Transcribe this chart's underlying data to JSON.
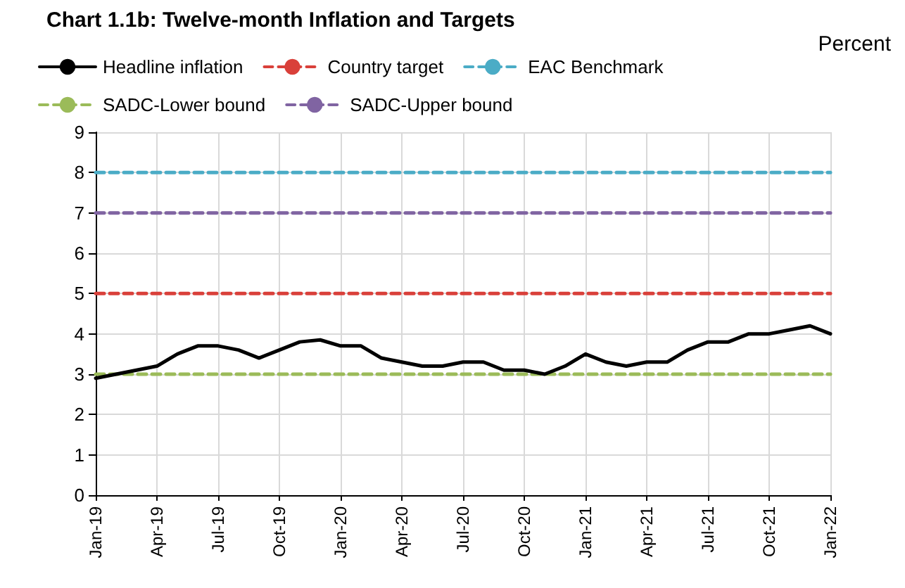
{
  "chart_data": {
    "type": "line",
    "title": "Chart 1.1b: Twelve-month Inflation and Targets",
    "ylabel": "Percent",
    "categories": [
      "Jan-19",
      null,
      null,
      "Apr-19",
      null,
      null,
      "Jul-19",
      null,
      null,
      "Oct-19",
      null,
      null,
      "Jan-20",
      null,
      null,
      "Apr-20",
      null,
      null,
      "Jul-20",
      null,
      null,
      "Oct-20",
      null,
      null,
      "Jan-21",
      null,
      null,
      "Apr-21",
      null,
      null,
      "Jul-21",
      null,
      null,
      "Oct-21",
      null,
      null,
      "Jan-22"
    ],
    "series": [
      {
        "name": "Headline inflation",
        "color": "#000000",
        "line_style": "solid",
        "values": [
          2.9,
          3.0,
          3.1,
          3.2,
          3.5,
          3.7,
          3.7,
          3.6,
          3.4,
          3.6,
          3.8,
          3.85,
          3.7,
          3.7,
          3.4,
          3.3,
          3.2,
          3.2,
          3.3,
          3.3,
          3.1,
          3.1,
          3.0,
          3.2,
          3.5,
          3.3,
          3.2,
          3.3,
          3.3,
          3.6,
          3.8,
          3.8,
          4.0,
          4.0,
          4.1,
          4.2,
          4.0
        ]
      },
      {
        "name": "Country target",
        "color": "#d9403a",
        "line_style": "dashed",
        "values": [
          5,
          5,
          5,
          5,
          5,
          5,
          5,
          5,
          5,
          5,
          5,
          5,
          5,
          5,
          5,
          5,
          5,
          5,
          5,
          5,
          5,
          5,
          5,
          5,
          5,
          5,
          5,
          5,
          5,
          5,
          5,
          5,
          5,
          5,
          5,
          5,
          5
        ]
      },
      {
        "name": "EAC Benchmark",
        "color": "#4bacc6",
        "line_style": "dashed",
        "values": [
          8,
          8,
          8,
          8,
          8,
          8,
          8,
          8,
          8,
          8,
          8,
          8,
          8,
          8,
          8,
          8,
          8,
          8,
          8,
          8,
          8,
          8,
          8,
          8,
          8,
          8,
          8,
          8,
          8,
          8,
          8,
          8,
          8,
          8,
          8,
          8,
          8
        ]
      },
      {
        "name": "SADC-Lower bound",
        "color": "#9bbb59",
        "line_style": "dashed",
        "values": [
          3,
          3,
          3,
          3,
          3,
          3,
          3,
          3,
          3,
          3,
          3,
          3,
          3,
          3,
          3,
          3,
          3,
          3,
          3,
          3,
          3,
          3,
          3,
          3,
          3,
          3,
          3,
          3,
          3,
          3,
          3,
          3,
          3,
          3,
          3,
          3,
          3
        ]
      },
      {
        "name": "SADC-Upper bound",
        "color": "#8064a2",
        "line_style": "dashed",
        "values": [
          7,
          7,
          7,
          7,
          7,
          7,
          7,
          7,
          7,
          7,
          7,
          7,
          7,
          7,
          7,
          7,
          7,
          7,
          7,
          7,
          7,
          7,
          7,
          7,
          7,
          7,
          7,
          7,
          7,
          7,
          7,
          7,
          7,
          7,
          7,
          7,
          7
        ]
      }
    ],
    "ylim": [
      0,
      9
    ],
    "yticks": [
      0,
      1,
      2,
      3,
      4,
      5,
      6,
      7,
      8,
      9
    ],
    "grid": true,
    "legend": "top left",
    "marker": "none"
  }
}
